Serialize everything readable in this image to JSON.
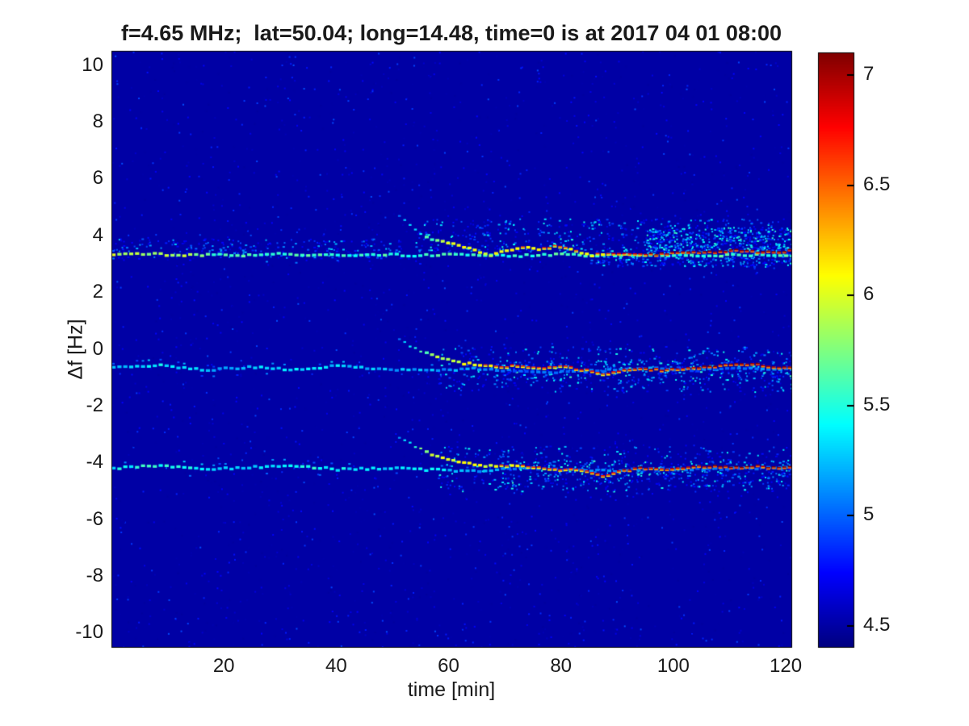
{
  "chart_data": {
    "type": "heatmap",
    "title": "f=4.65 MHz;  lat=50.04; long=14.48, time=0 is at 2017 04 01 08:00",
    "xlabel": "time [min]",
    "ylabel": "Δf [Hz]",
    "xlim": [
      0,
      121
    ],
    "ylim": [
      -10.5,
      10.5
    ],
    "xticks": [
      20,
      40,
      60,
      80,
      100,
      120
    ],
    "yticks": [
      10,
      8,
      6,
      4,
      2,
      0,
      -2,
      -4,
      -6,
      -8,
      -10
    ],
    "grid": false,
    "colormap": "jet",
    "clim": [
      4.4,
      7.1
    ],
    "colorbar_ticks": [
      4.5,
      5,
      5.5,
      6,
      6.5,
      7
    ],
    "background_value": 4.5,
    "colors": {
      "figure_background": "#ffffff",
      "deep_blue_background": "#0000a0",
      "frame": "#000000",
      "text": "#1a1a1a"
    },
    "series": [
      {
        "name": "persistent-doppler-line-upper",
        "kind": "persistent",
        "t": [
          0,
          6,
          12,
          18,
          24,
          30,
          36,
          42,
          48,
          54,
          60,
          66,
          72,
          78,
          84,
          90,
          96,
          102,
          108,
          114,
          121
        ],
        "df": [
          3.3,
          3.35,
          3.28,
          3.32,
          3.3,
          3.34,
          3.28,
          3.3,
          3.33,
          3.29,
          3.31,
          3.3,
          3.28,
          3.32,
          3.3,
          3.3,
          3.31,
          3.29,
          3.3,
          3.31,
          3.3
        ],
        "v": [
          5.9,
          5.8,
          5.9,
          5.6,
          5.7,
          5.5,
          5.6,
          5.5,
          5.6,
          5.5,
          5.6,
          5.5,
          5.5,
          5.6,
          5.5,
          5.5,
          5.6,
          5.5,
          5.6,
          5.5,
          5.6
        ]
      },
      {
        "name": "persistent-doppler-line-middle",
        "kind": "persistent",
        "t": [
          0,
          8,
          16,
          24,
          32,
          40,
          48,
          56,
          64,
          72,
          80,
          88,
          96,
          104,
          112,
          121
        ],
        "df": [
          -0.65,
          -0.58,
          -0.75,
          -0.65,
          -0.72,
          -0.6,
          -0.7,
          -0.78,
          -0.7,
          -0.78,
          -0.82,
          -0.75,
          -0.7,
          -0.75,
          -0.68,
          -0.72
        ],
        "v": [
          5.3,
          5.4,
          5.2,
          5.3,
          5.4,
          5.3,
          5.2,
          5.2,
          5.1,
          5.0,
          5.1,
          5.0,
          5.1,
          5.0,
          5.1,
          5.1
        ]
      },
      {
        "name": "persistent-doppler-line-lower",
        "kind": "persistent",
        "t": [
          0,
          8,
          16,
          24,
          32,
          40,
          48,
          56,
          64,
          72,
          80,
          88,
          96,
          104,
          112,
          121
        ],
        "df": [
          -4.2,
          -4.12,
          -4.25,
          -4.18,
          -4.1,
          -4.25,
          -4.2,
          -4.26,
          -4.3,
          -4.2,
          -4.26,
          -4.3,
          -4.22,
          -4.25,
          -4.2,
          -4.2
        ],
        "v": [
          5.4,
          5.5,
          5.4,
          5.3,
          5.5,
          5.4,
          5.3,
          5.4,
          5.2,
          5.1,
          5.0,
          5.1,
          5.0,
          5.0,
          5.1,
          5.1
        ]
      },
      {
        "name": "chirp-trace-upper",
        "kind": "chirp",
        "t": [
          51,
          53,
          55,
          57,
          59,
          61,
          63,
          65,
          67,
          70,
          73,
          76,
          79,
          82,
          85,
          88,
          92,
          96,
          100,
          105,
          110,
          115,
          121
        ],
        "df": [
          4.7,
          4.35,
          4.05,
          3.85,
          3.75,
          3.7,
          3.55,
          3.42,
          3.3,
          3.45,
          3.6,
          3.5,
          3.62,
          3.45,
          3.3,
          3.32,
          3.35,
          3.3,
          3.38,
          3.4,
          3.45,
          3.4,
          3.45
        ],
        "v": [
          5.0,
          5.3,
          5.5,
          5.7,
          5.9,
          6.0,
          6.1,
          6.05,
          6.0,
          6.1,
          6.2,
          6.1,
          6.2,
          6.1,
          6.0,
          6.3,
          6.5,
          6.6,
          6.7,
          6.7,
          6.8,
          6.7,
          6.8
        ]
      },
      {
        "name": "chirp-trace-middle",
        "kind": "chirp",
        "t": [
          51,
          53,
          55,
          57,
          59,
          62,
          65,
          68,
          72,
          76,
          80,
          84,
          87,
          90,
          94,
          98,
          102,
          106,
          110,
          114,
          118,
          121
        ],
        "df": [
          0.35,
          0.1,
          -0.1,
          -0.25,
          -0.35,
          -0.5,
          -0.55,
          -0.65,
          -0.6,
          -0.7,
          -0.65,
          -0.75,
          -0.9,
          -0.8,
          -0.72,
          -0.76,
          -0.7,
          -0.65,
          -0.58,
          -0.55,
          -0.65,
          -0.7
        ],
        "v": [
          5.1,
          5.3,
          5.6,
          5.8,
          5.9,
          6.0,
          6.1,
          6.2,
          6.3,
          6.2,
          6.3,
          6.4,
          6.3,
          6.5,
          6.6,
          6.5,
          6.6,
          6.7,
          6.6,
          6.7,
          6.6,
          6.7
        ]
      },
      {
        "name": "chirp-trace-lower",
        "kind": "chirp",
        "t": [
          51,
          53,
          55,
          57,
          59,
          62,
          65,
          68,
          72,
          76,
          80,
          84,
          87,
          90,
          94,
          98,
          102,
          106,
          110,
          114,
          118,
          121
        ],
        "df": [
          -3.1,
          -3.35,
          -3.55,
          -3.75,
          -3.9,
          -4.0,
          -4.1,
          -4.15,
          -4.1,
          -4.2,
          -4.26,
          -4.3,
          -4.48,
          -4.35,
          -4.2,
          -4.25,
          -4.2,
          -4.15,
          -4.2,
          -4.15,
          -4.2,
          -4.2
        ],
        "v": [
          5.2,
          5.5,
          5.7,
          5.9,
          6.0,
          6.1,
          6.0,
          6.1,
          6.2,
          6.2,
          6.3,
          6.3,
          6.4,
          6.5,
          6.6,
          6.5,
          6.6,
          6.6,
          6.7,
          6.6,
          6.7,
          6.7
        ]
      }
    ],
    "base_speckles": {
      "count": 2600,
      "v": [
        4.48,
        4.95
      ]
    },
    "noise_clusters": [
      {
        "t": [
          54,
          121
        ],
        "df": [
          3.4,
          4.6
        ],
        "count": 500,
        "v": [
          4.65,
          5.5
        ]
      },
      {
        "t": [
          95,
          121
        ],
        "df": [
          3.3,
          4.3
        ],
        "count": 450,
        "v": [
          4.7,
          5.6
        ]
      },
      {
        "t": [
          58,
          121
        ],
        "df": [
          -1.5,
          0.1
        ],
        "count": 420,
        "v": [
          4.65,
          5.5
        ]
      },
      {
        "t": [
          58,
          121
        ],
        "df": [
          -5.0,
          -3.4
        ],
        "count": 420,
        "v": [
          4.65,
          5.5
        ]
      },
      {
        "t": [
          0,
          52
        ],
        "df": [
          3.2,
          3.9
        ],
        "count": 260,
        "v": [
          4.6,
          5.3
        ]
      },
      {
        "t": [
          85,
          121
        ],
        "df": [
          2.9,
          3.3
        ],
        "count": 200,
        "v": [
          4.7,
          5.5
        ]
      },
      {
        "t": [
          70,
          121
        ],
        "df": [
          -1.1,
          -0.4
        ],
        "count": 260,
        "v": [
          4.7,
          5.6
        ]
      },
      {
        "t": [
          70,
          121
        ],
        "df": [
          -4.8,
          -3.9
        ],
        "count": 260,
        "v": [
          4.7,
          5.6
        ]
      }
    ]
  }
}
